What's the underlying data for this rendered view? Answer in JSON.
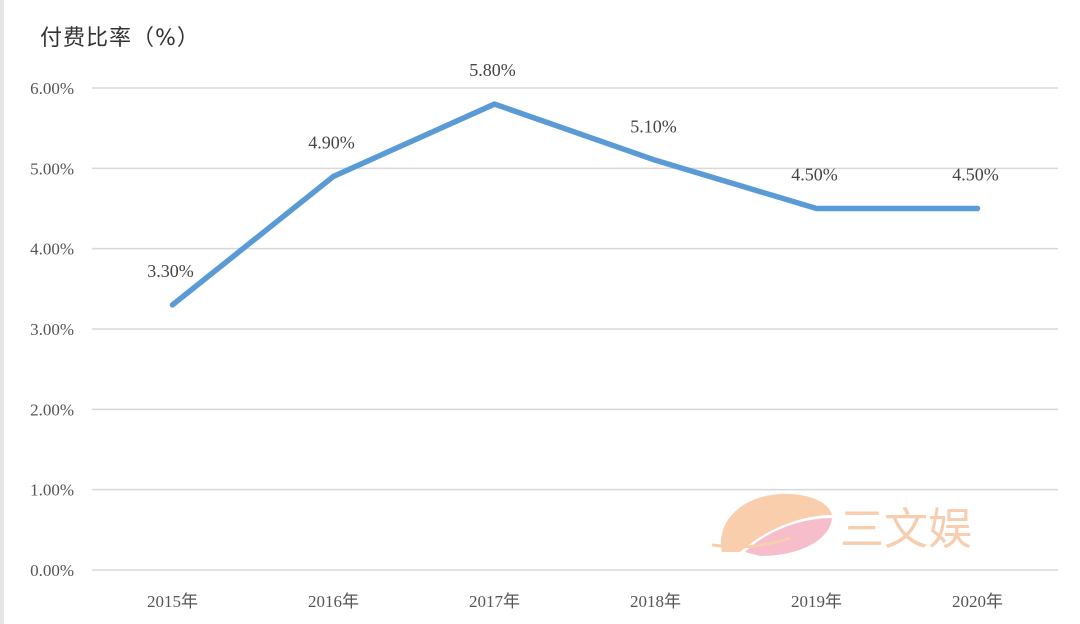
{
  "chart_data": {
    "type": "line",
    "title": "付费比率（%）",
    "categories": [
      "2015年",
      "2016年",
      "2017年",
      "2018年",
      "2019年",
      "2020年"
    ],
    "series": [
      {
        "values": [
          3.3,
          4.9,
          5.8,
          5.1,
          4.5,
          4.5
        ],
        "labels": [
          "3.30%",
          "4.90%",
          "5.80%",
          "5.10%",
          "4.50%",
          "4.50%"
        ]
      }
    ],
    "yticks": [
      "0.00%",
      "1.00%",
      "2.00%",
      "3.00%",
      "4.00%",
      "5.00%",
      "6.00%"
    ],
    "ylim": [
      0,
      6
    ],
    "grid": true,
    "line_color": "#5b9bd5"
  },
  "watermark": {
    "text": "三文娱",
    "icon": "fan-leaf-logo-icon"
  }
}
